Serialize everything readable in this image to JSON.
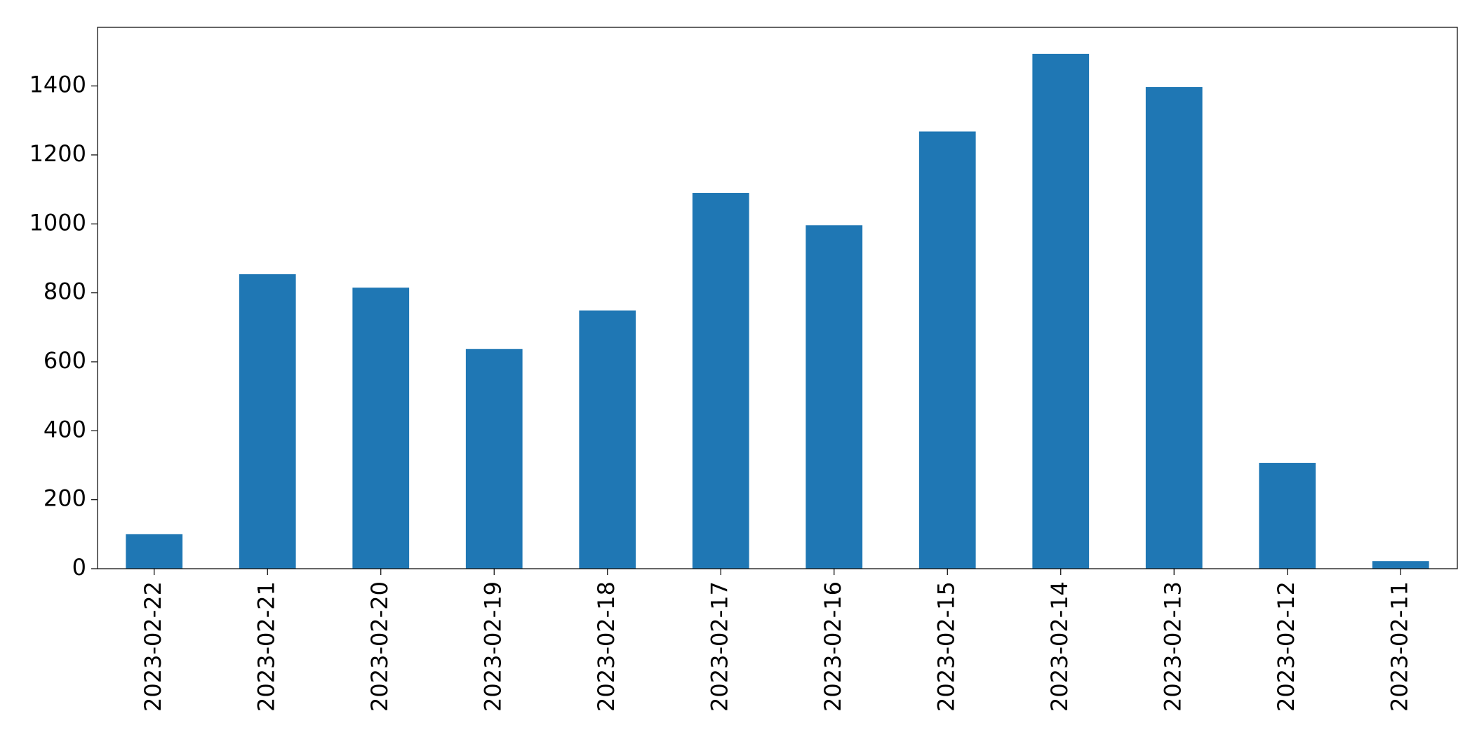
{
  "chart_data": {
    "type": "bar",
    "categories": [
      "2023-02-22",
      "2023-02-21",
      "2023-02-20",
      "2023-02-19",
      "2023-02-18",
      "2023-02-17",
      "2023-02-16",
      "2023-02-15",
      "2023-02-14",
      "2023-02-13",
      "2023-02-12",
      "2023-02-11"
    ],
    "values": [
      100,
      854,
      815,
      637,
      749,
      1090,
      996,
      1268,
      1493,
      1397,
      307,
      22
    ],
    "color": "#1f77b4",
    "ylim": [
      0,
      1570
    ],
    "yticks": [
      0,
      200,
      400,
      600,
      800,
      1000,
      1200,
      1400
    ],
    "grid": false
  }
}
